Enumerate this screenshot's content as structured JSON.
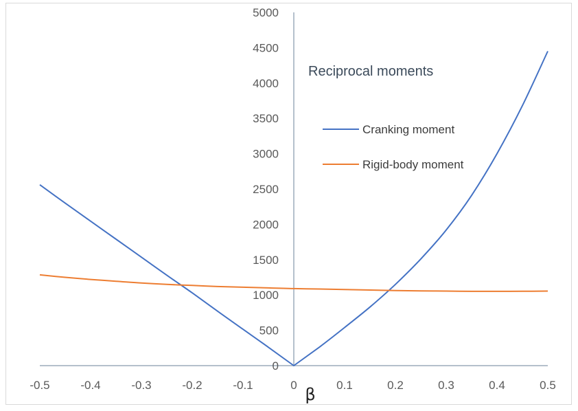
{
  "chart_data": {
    "type": "line",
    "title": "Reciprocal moments",
    "xlabel": "β",
    "ylabel": "",
    "xlim": [
      -0.5,
      0.5
    ],
    "ylim": [
      0,
      5000
    ],
    "x_ticks": [
      "-0.5",
      "-0.4",
      "-0.3",
      "-0.2",
      "-0.1",
      "0",
      "0.1",
      "0.2",
      "0.3",
      "0.4",
      "0.5"
    ],
    "y_ticks": [
      "0",
      "500",
      "1000",
      "1500",
      "2000",
      "2500",
      "3000",
      "3500",
      "4000",
      "4500",
      "5000"
    ],
    "grid": false,
    "legend_position": "right",
    "series": [
      {
        "name": "Cranking moment",
        "color": "#4472c4",
        "x": [
          -0.5,
          -0.45,
          -0.4,
          -0.35,
          -0.3,
          -0.25,
          -0.2,
          -0.15,
          -0.1,
          -0.05,
          0,
          0.05,
          0.1,
          0.15,
          0.2,
          0.25,
          0.3,
          0.35,
          0.4,
          0.45,
          0.5
        ],
        "y": [
          2560,
          2300,
          2045,
          1790,
          1535,
          1280,
          1030,
          770,
          515,
          260,
          0,
          260,
          540,
          830,
          1150,
          1510,
          1920,
          2410,
          3000,
          3680,
          4450
        ]
      },
      {
        "name": "Rigid-body moment",
        "color": "#ed7d31",
        "x": [
          -0.5,
          -0.45,
          -0.4,
          -0.35,
          -0.3,
          -0.25,
          -0.2,
          -0.15,
          -0.1,
          -0.05,
          0,
          0.05,
          0.1,
          0.15,
          0.2,
          0.25,
          0.3,
          0.35,
          0.4,
          0.45,
          0.5
        ],
        "y": [
          1285,
          1250,
          1220,
          1195,
          1170,
          1150,
          1135,
          1120,
          1110,
          1100,
          1090,
          1085,
          1078,
          1070,
          1062,
          1058,
          1055,
          1052,
          1052,
          1053,
          1055
        ]
      }
    ]
  }
}
